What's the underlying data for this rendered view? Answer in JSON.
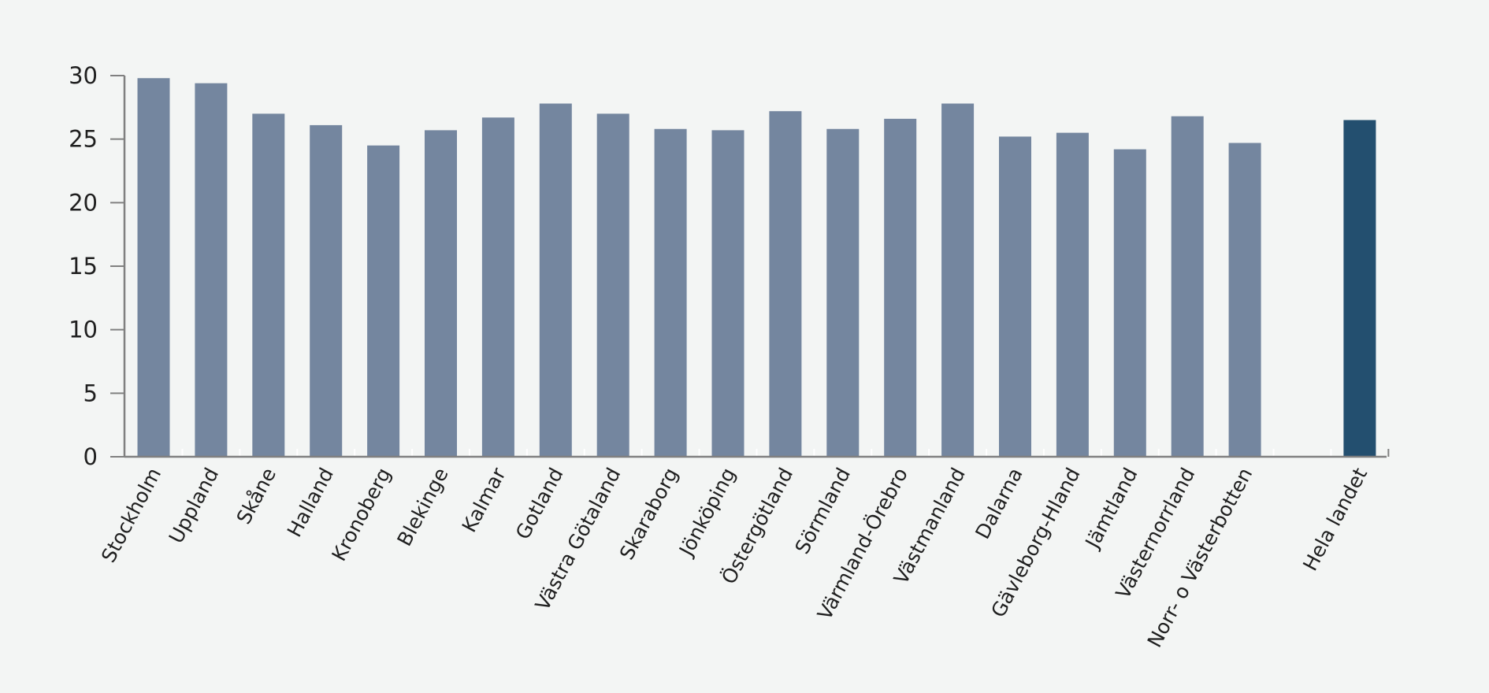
{
  "chart_data": {
    "type": "bar",
    "title": "",
    "xlabel": "",
    "ylabel": "",
    "ylim": [
      0,
      30
    ],
    "yticks": [
      0,
      5,
      10,
      15,
      20,
      25,
      30
    ],
    "grid": false,
    "legend": "none",
    "categories": [
      "Stockholm",
      "Uppland",
      "Skåne",
      "Halland",
      "Kronoberg",
      "Blekinge",
      "Kalmar",
      "Gotland",
      "Västra Götaland",
      "Skaraborg",
      "Jönköping",
      "Östergötland",
      "Sörmland",
      "Värmland-Örebro",
      "Västmanland",
      "Dalarna",
      "Gävleborg-Hland",
      "Jämtland",
      "Västernorrland",
      "Norr- o Västerbotten",
      "",
      "Hela landet"
    ],
    "values": [
      29.8,
      29.4,
      27.0,
      26.1,
      24.5,
      25.7,
      26.7,
      27.8,
      27.0,
      25.8,
      25.7,
      27.2,
      25.8,
      26.6,
      27.8,
      25.2,
      25.5,
      24.2,
      26.8,
      24.7,
      null,
      26.5
    ],
    "highlight_category": "Hela landet",
    "colors": {
      "bar": "#74869f",
      "highlight": "#234f6f",
      "axis": "#808080",
      "background": "#f3f5f4"
    }
  }
}
